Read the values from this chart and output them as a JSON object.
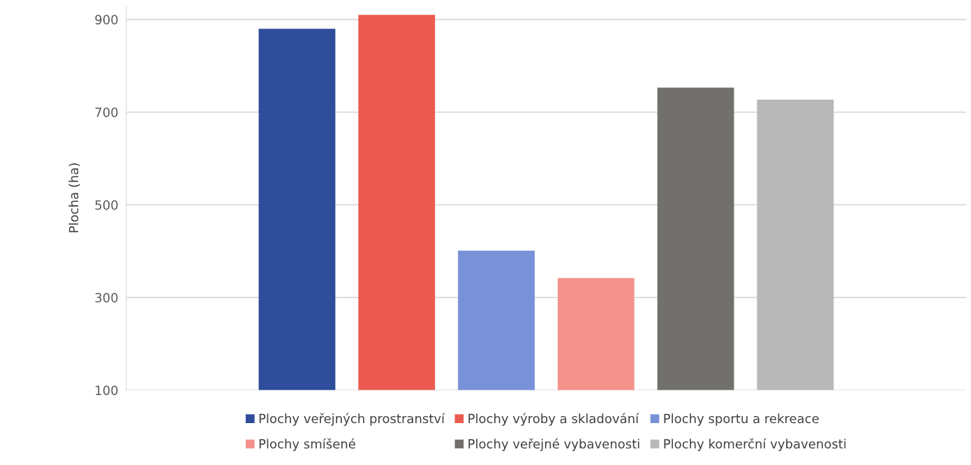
{
  "chart_data": {
    "type": "bar",
    "ylabel": "Plocha (ha)",
    "categories": [
      null
    ],
    "series": [
      {
        "name": "Plochy veřejných prostranství",
        "color": "#2e4d9b",
        "values": [
          880
        ]
      },
      {
        "name": "Plochy výroby a skladování",
        "color": "#eb5a4e",
        "values": [
          910
        ]
      },
      {
        "name": "Plochy sportu a rekreace",
        "color": "#7891d8",
        "values": [
          401
        ]
      },
      {
        "name": "Plochy smíšené",
        "color": "#f4928b",
        "values": [
          342
        ]
      },
      {
        "name": "Plochy veřejné vybavenosti",
        "color": "#72706d",
        "values": [
          753
        ]
      },
      {
        "name": "Plochy komerční vybavenosti",
        "color": "#b8b8b8",
        "values": [
          727
        ]
      }
    ],
    "ylim": [
      100,
      930
    ],
    "yticks": [
      100,
      300,
      500,
      700,
      900
    ],
    "grid": "y",
    "legend": "bottom"
  }
}
